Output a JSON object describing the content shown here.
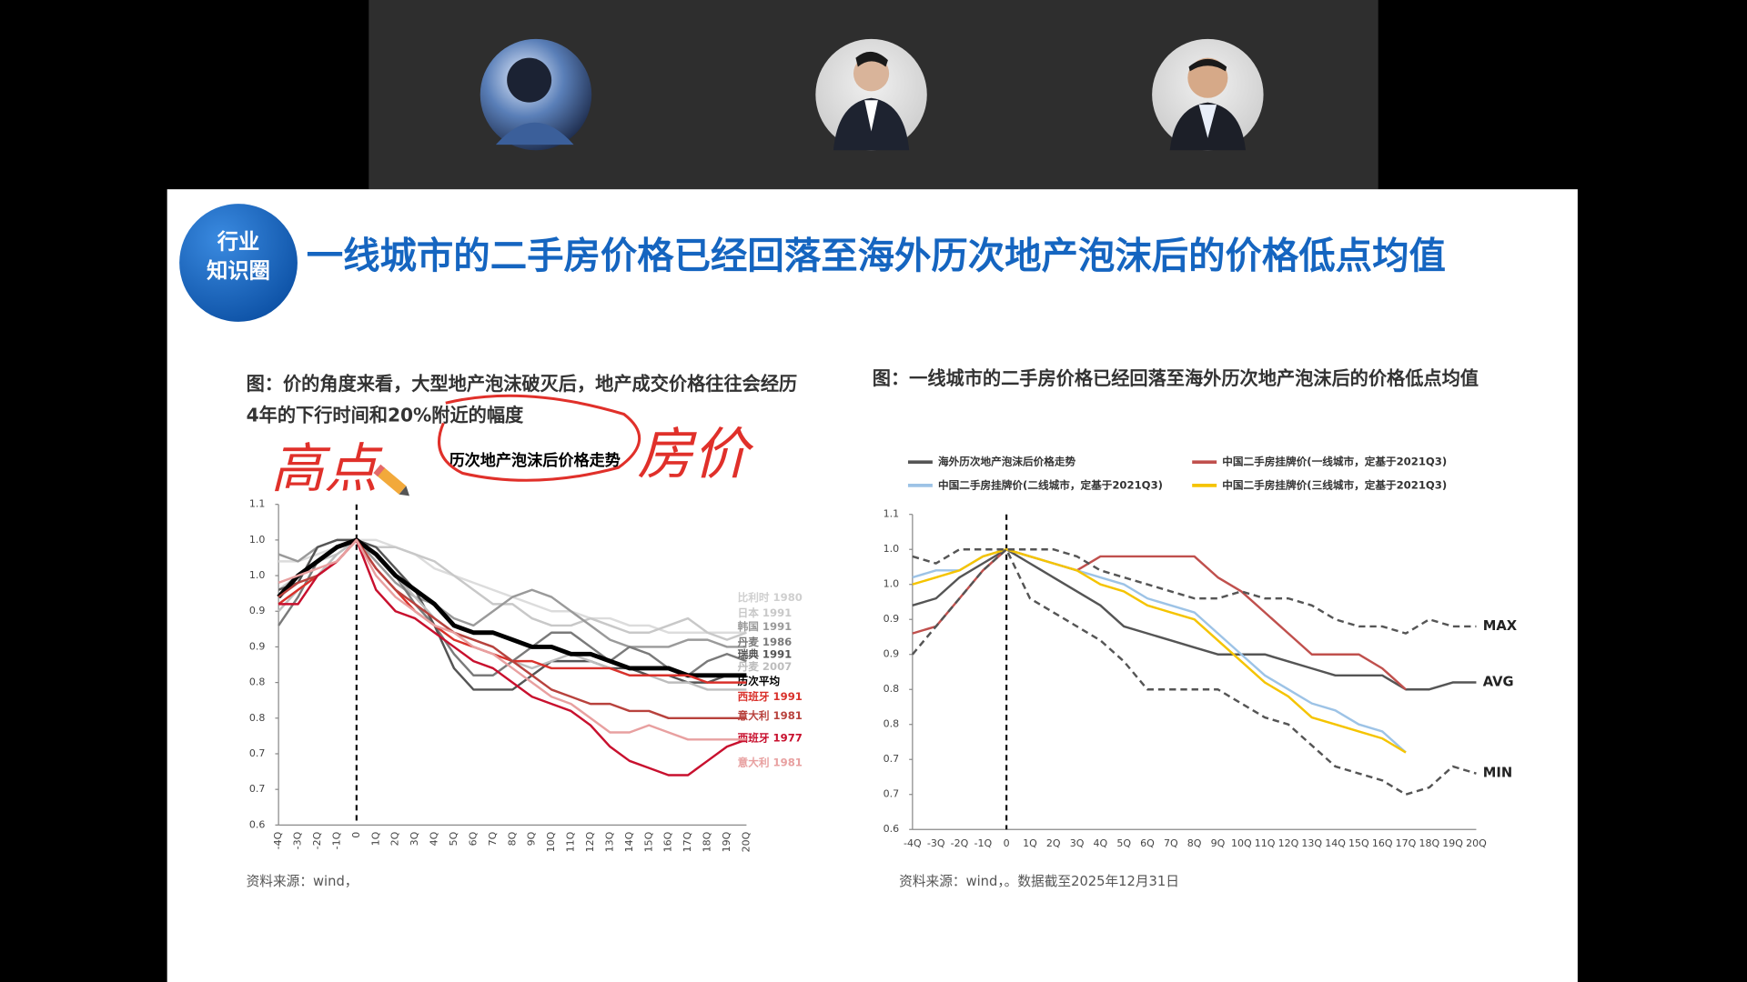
{
  "slide": {
    "badge": [
      "行业",
      "知识圈"
    ],
    "title": "一线城市的二手房价格已经回落至海外历次地产泡沫后的价格低点均值"
  },
  "annotations": [
    "高点",
    "房价"
  ],
  "chart_data": [
    {
      "type": "line",
      "caption_lines": [
        "图：价的角度来看，大型地产泡沫破灭后，地产成交价格往往会经历",
        "4年的下行时间和20%附近的幅度"
      ],
      "title": "历次地产泡沫后价格走势",
      "source": "资料来源：wind，",
      "categories": [
        "-4Q",
        "-3Q",
        "-2Q",
        "-1Q",
        "0",
        "1Q",
        "2Q",
        "3Q",
        "4Q",
        "5Q",
        "6Q",
        "7Q",
        "8Q",
        "9Q",
        "10Q",
        "11Q",
        "12Q",
        "13Q",
        "14Q",
        "15Q",
        "16Q",
        "17Q",
        "18Q",
        "19Q",
        "20Q"
      ],
      "ylim": [
        0.65,
        1.1
      ],
      "yticks": [
        1.1,
        {
          "value": 1.05,
          "label": "1.0"
        },
        {
          "value": 1.0,
          "label": "1.0"
        },
        {
          "value": 0.95,
          "label": "0.9"
        },
        {
          "value": 0.9,
          "label": "0.9"
        },
        {
          "value": 0.85,
          "label": "0.8"
        },
        {
          "value": 0.8,
          "label": "0.8"
        },
        {
          "value": 0.75,
          "label": "0.7"
        },
        {
          "value": 0.7,
          "label": "0.7"
        },
        {
          "value": 0.65,
          "label": "0.6"
        }
      ],
      "series": [
        {
          "name": "比利时 1980",
          "color": "#dcdcdc",
          "values": [
            1.02,
            1.02,
            1.03,
            1.04,
            1.05,
            1.05,
            1.04,
            1.03,
            1.01,
            1.0,
            0.99,
            0.98,
            0.97,
            0.96,
            0.95,
            0.95,
            0.94,
            0.94,
            0.93,
            0.93,
            0.92,
            0.92,
            0.92,
            0.92,
            0.92
          ]
        },
        {
          "name": "日本 1991",
          "color": "#c8c8c8",
          "values": [
            0.98,
            1.0,
            1.02,
            1.03,
            1.05,
            1.04,
            1.04,
            1.03,
            1.02,
            1.0,
            0.98,
            0.96,
            0.96,
            0.94,
            0.93,
            0.93,
            0.94,
            0.93,
            0.92,
            0.92,
            0.93,
            0.94,
            0.92,
            0.91,
            0.92
          ]
        },
        {
          "name": "韩国 1991",
          "color": "#9a9a9a",
          "values": [
            1.03,
            1.02,
            1.04,
            1.05,
            1.05,
            1.02,
            0.99,
            0.97,
            0.96,
            0.94,
            0.93,
            0.95,
            0.97,
            0.98,
            0.97,
            0.95,
            0.93,
            0.91,
            0.9,
            0.9,
            0.9,
            0.91,
            0.91,
            0.9,
            0.9
          ]
        },
        {
          "name": "丹麦 1986",
          "color": "#7a7a7a",
          "values": [
            0.93,
            0.97,
            1.02,
            1.04,
            1.05,
            1.03,
            1.0,
            0.96,
            0.93,
            0.89,
            0.86,
            0.86,
            0.88,
            0.9,
            0.92,
            0.92,
            0.9,
            0.88,
            0.9,
            0.89,
            0.87,
            0.86,
            0.88,
            0.89,
            0.88
          ]
        },
        {
          "name": "瑞典 1991",
          "color": "#555555",
          "values": [
            0.98,
            0.99,
            1.04,
            1.05,
            1.05,
            1.04,
            1.01,
            0.98,
            0.93,
            0.87,
            0.84,
            0.84,
            0.84,
            0.86,
            0.88,
            0.88,
            0.88,
            0.87,
            0.87,
            0.86,
            0.86,
            0.85,
            0.85,
            0.86,
            0.86
          ]
        },
        {
          "name": "丹麦 2007",
          "color": "#bdbdbd",
          "values": [
            0.95,
            0.98,
            1.0,
            1.03,
            1.05,
            1.03,
            1.0,
            0.97,
            0.94,
            0.92,
            0.91,
            0.9,
            0.88,
            0.87,
            0.88,
            0.89,
            0.88,
            0.87,
            0.86,
            0.86,
            0.85,
            0.85,
            0.84,
            0.84,
            0.84
          ]
        },
        {
          "name": "历次平均",
          "color": "#000000",
          "width": 4,
          "values": [
            0.97,
            1.0,
            1.02,
            1.04,
            1.05,
            1.03,
            1.0,
            0.98,
            0.96,
            0.93,
            0.92,
            0.92,
            0.91,
            0.9,
            0.9,
            0.89,
            0.89,
            0.88,
            0.87,
            0.87,
            0.87,
            0.86,
            0.86,
            0.86,
            0.86
          ]
        },
        {
          "name": "西班牙 1991",
          "color": "#d9312b",
          "values": [
            0.96,
            0.98,
            1.0,
            1.02,
            1.05,
            1.01,
            0.98,
            0.95,
            0.93,
            0.91,
            0.9,
            0.89,
            0.88,
            0.88,
            0.87,
            0.87,
            0.87,
            0.87,
            0.86,
            0.86,
            0.86,
            0.86,
            0.85,
            0.85,
            0.85
          ]
        },
        {
          "name": "意大利 1981",
          "color": "#b8423d",
          "values": [
            0.97,
            0.99,
            1.0,
            1.02,
            1.05,
            1.01,
            0.98,
            0.96,
            0.94,
            0.92,
            0.91,
            0.9,
            0.88,
            0.86,
            0.84,
            0.83,
            0.82,
            0.82,
            0.81,
            0.81,
            0.8,
            0.8,
            0.8,
            0.8,
            0.8
          ]
        },
        {
          "name": "西班牙 1977",
          "color": "#c8102e",
          "values": [
            0.96,
            0.96,
            1.0,
            1.02,
            1.05,
            0.98,
            0.95,
            0.94,
            0.92,
            0.9,
            0.88,
            0.87,
            0.85,
            0.83,
            0.82,
            0.81,
            0.79,
            0.76,
            0.74,
            0.73,
            0.72,
            0.72,
            0.74,
            0.76,
            0.77
          ]
        },
        {
          "name": "意大利 1981",
          "color": "#e8a0a0",
          "values": [
            0.99,
            1.0,
            1.01,
            1.02,
            1.05,
            1.0,
            0.97,
            0.95,
            0.93,
            0.92,
            0.9,
            0.89,
            0.87,
            0.85,
            0.83,
            0.82,
            0.8,
            0.78,
            0.78,
            0.79,
            0.78,
            0.77,
            0.77,
            0.77,
            0.77
          ]
        }
      ]
    },
    {
      "type": "line",
      "caption_lines": [
        "图：一线城市的二手房价格已经回落至海外历次地产泡沫后的价格低点均值"
      ],
      "source": "资料来源：wind，。数据截至2025年12月31日",
      "categories": [
        "-4Q",
        "-3Q",
        "-2Q",
        "-1Q",
        "0",
        "1Q",
        "2Q",
        "3Q",
        "4Q",
        "5Q",
        "6Q",
        "7Q",
        "8Q",
        "9Q",
        "10Q",
        "11Q",
        "12Q",
        "13Q",
        "14Q",
        "15Q",
        "16Q",
        "17Q",
        "18Q",
        "19Q",
        "20Q"
      ],
      "ylim": [
        0.65,
        1.1
      ],
      "yticks": [
        1.1,
        {
          "value": 1.05,
          "label": "1.0"
        },
        {
          "value": 1.0,
          "label": "1.0"
        },
        {
          "value": 0.95,
          "label": "0.9"
        },
        {
          "value": 0.9,
          "label": "0.9"
        },
        {
          "value": 0.85,
          "label": "0.8"
        },
        {
          "value": 0.8,
          "label": "0.8"
        },
        {
          "value": 0.75,
          "label": "0.7"
        },
        {
          "value": 0.7,
          "label": "0.7"
        },
        {
          "value": 0.65,
          "label": "0.6"
        }
      ],
      "series": [
        {
          "name": "海外历次地产泡沫后价格走势",
          "end_label": "AVG",
          "color": "#555555",
          "values": [
            0.97,
            0.98,
            1.01,
            1.03,
            1.05,
            1.03,
            1.01,
            0.99,
            0.97,
            0.94,
            0.93,
            0.92,
            0.91,
            0.9,
            0.9,
            0.9,
            0.89,
            0.88,
            0.87,
            0.87,
            0.87,
            0.85,
            0.85,
            0.86,
            0.86
          ]
        },
        {
          "name": "中国二手房挂牌价(一线城市，定基于2021Q3)",
          "color": "#c0504d",
          "values": [
            0.93,
            0.94,
            0.98,
            1.02,
            1.05,
            1.04,
            1.03,
            1.02,
            1.04,
            1.04,
            1.04,
            1.04,
            1.04,
            1.01,
            0.99,
            0.96,
            0.93,
            0.9,
            0.9,
            0.9,
            0.88,
            0.85,
            null,
            null,
            null
          ]
        },
        {
          "name": "中国二手房挂牌价(二线城市，定基于2021Q3)",
          "color": "#9dc3e6",
          "values": [
            1.01,
            1.02,
            1.02,
            1.04,
            1.05,
            1.04,
            1.03,
            1.02,
            1.01,
            1.0,
            0.98,
            0.97,
            0.96,
            0.93,
            0.9,
            0.87,
            0.85,
            0.83,
            0.82,
            0.8,
            0.79,
            0.76,
            null,
            null,
            null
          ]
        },
        {
          "name": "中国二手房挂牌价(三线城市，定基于2021Q3)",
          "color": "#f5c400",
          "values": [
            1.0,
            1.01,
            1.02,
            1.04,
            1.05,
            1.04,
            1.03,
            1.02,
            1.0,
            0.99,
            0.97,
            0.96,
            0.95,
            0.92,
            0.89,
            0.86,
            0.84,
            0.81,
            0.8,
            0.79,
            0.78,
            0.76,
            null,
            null,
            null
          ]
        },
        {
          "end_label": "MAX",
          "color": "#555555",
          "dash": true,
          "values": [
            1.04,
            1.03,
            1.05,
            1.05,
            1.05,
            1.05,
            1.05,
            1.04,
            1.02,
            1.01,
            1.0,
            0.99,
            0.98,
            0.98,
            0.99,
            0.98,
            0.98,
            0.97,
            0.95,
            0.94,
            0.94,
            0.93,
            0.95,
            0.94,
            0.94
          ]
        },
        {
          "end_label": "MIN",
          "color": "#555555",
          "dash": true,
          "values": [
            0.9,
            0.94,
            0.98,
            1.02,
            1.05,
            0.98,
            0.96,
            0.94,
            0.92,
            0.89,
            0.85,
            0.85,
            0.85,
            0.85,
            0.83,
            0.81,
            0.8,
            0.77,
            0.74,
            0.73,
            0.72,
            0.7,
            0.71,
            0.74,
            0.73
          ]
        }
      ]
    }
  ]
}
